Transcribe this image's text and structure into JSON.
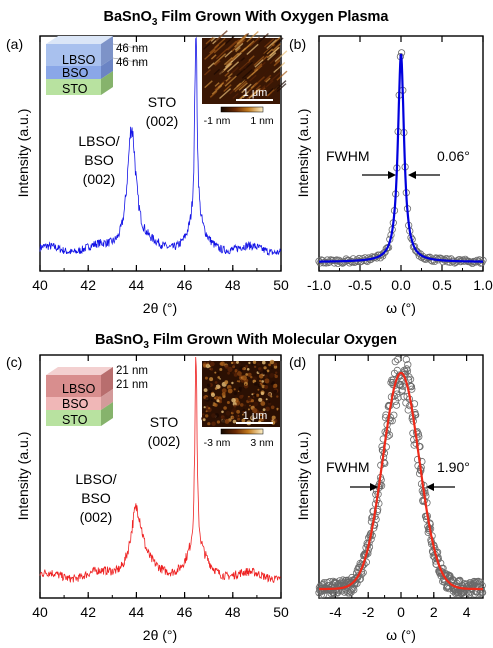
{
  "colors": {
    "plasma": "#1414e6",
    "molecular": "#ee2222",
    "fit_blue": "#0000dd",
    "fit_red": "#ee2a1a",
    "circles": "#6a6a6a"
  },
  "chart_data": [
    {
      "panel": "(a)",
      "type": "line",
      "title_main": "BaSnO",
      "title_sub": "3",
      "title_rest": " Film Grown With Oxygen Plasma",
      "xlabel": "2θ (°)",
      "ylabel": "Intensity (a.u.)",
      "xlim": [
        40,
        50
      ],
      "xticks": [
        "40",
        "42",
        "44",
        "46",
        "48",
        "50"
      ],
      "peaks": [
        {
          "label": [
            "LBSO/",
            "BSO",
            "(002)"
          ],
          "x": 43.8,
          "rel_height": 0.63
        },
        {
          "label": [
            "STO",
            "(002)"
          ],
          "x": 46.47,
          "rel_height": 0.98
        }
      ],
      "series": [
        {
          "values_note_x": [
            40,
            42,
            43,
            43.8,
            44.5,
            46,
            46.47,
            47,
            48,
            50
          ],
          "values": [
            0.07,
            0.1,
            0.18,
            0.63,
            0.16,
            0.16,
            0.98,
            0.22,
            0.09,
            0.06
          ]
        }
      ],
      "stack": [
        "LBSO",
        "BSO",
        "STO"
      ],
      "thickness": [
        "46 nm",
        "46 nm"
      ],
      "afm": {
        "scale": "1 μm",
        "min": "-1 nm",
        "max": "1 nm"
      }
    },
    {
      "panel": "(b)",
      "type": "scatter",
      "xlabel": "ω (°)",
      "ylabel": "Intensity (a.u.)",
      "xlim": [
        -1.0,
        1.0
      ],
      "xticks": [
        "-1.0",
        "-0.5",
        "0.0",
        "0.5",
        "1.0"
      ],
      "fwhm_label": "FWHM",
      "fwhm_value": "0.06°",
      "fwhm": 0.06
    },
    {
      "panel": "(c)",
      "type": "line",
      "title_main": "BaSnO",
      "title_sub": "3",
      "title_rest": " Film Grown With Molecular Oxygen",
      "xlabel": "2θ (°)",
      "ylabel": "Intensity (a.u.)",
      "xlim": [
        40,
        50
      ],
      "xticks": [
        "40",
        "42",
        "44",
        "46",
        "48",
        "50"
      ],
      "peaks": [
        {
          "label": [
            "LBSO/",
            "BSO",
            "(002)"
          ],
          "x": 44.0,
          "rel_height": 0.35
        },
        {
          "label": [
            "STO",
            "(002)"
          ],
          "x": 46.47,
          "rel_height": 0.98
        }
      ],
      "series": [
        {
          "values_note_x": [
            40,
            42,
            43,
            44,
            45,
            46,
            46.47,
            47,
            48,
            50
          ],
          "values": [
            0.05,
            0.08,
            0.14,
            0.35,
            0.12,
            0.18,
            0.98,
            0.24,
            0.07,
            0.05
          ]
        }
      ],
      "stack": [
        "LBSO",
        "BSO",
        "STO"
      ],
      "thickness": [
        "21 nm",
        "21 nm"
      ],
      "afm": {
        "scale": "1 μm",
        "min": "-3 nm",
        "max": "3 nm"
      }
    },
    {
      "panel": "(d)",
      "type": "scatter",
      "xlabel": "ω (°)",
      "ylabel": "Intensity (a.u.)",
      "xlim": [
        -5,
        5
      ],
      "xticks": [
        "-4",
        "-2",
        "0",
        "2",
        "4"
      ],
      "fwhm_label": "FWHM",
      "fwhm_value": "1.90°",
      "fwhm": 1.9
    }
  ]
}
